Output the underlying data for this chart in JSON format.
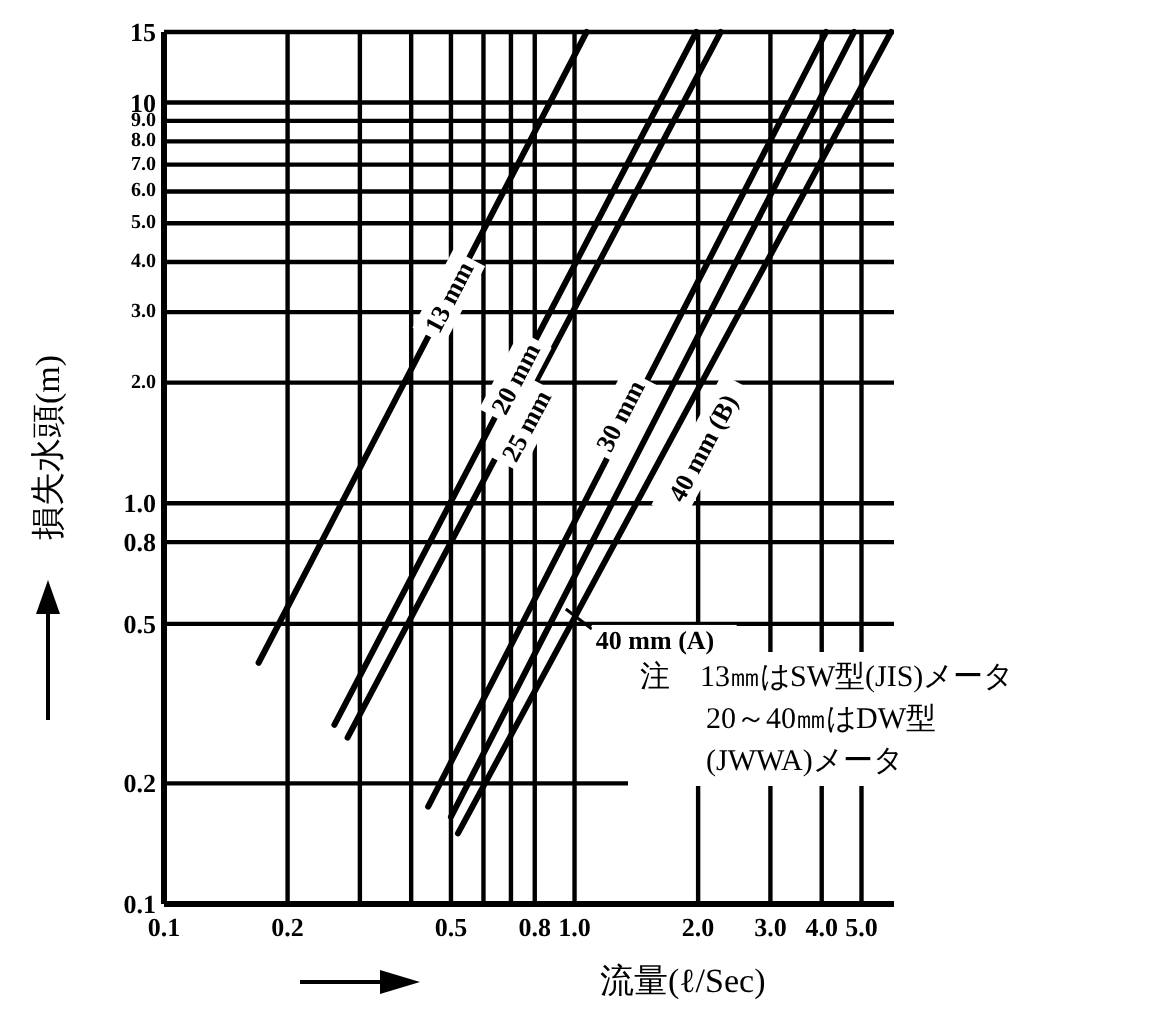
{
  "chart_data": {
    "type": "line",
    "xlabel": "流量(ℓ/Sec)",
    "ylabel": "損失水頭(m)",
    "log": "xy",
    "grid": true,
    "marker": "none",
    "line_style": "solid",
    "xlim": [
      0.1,
      6
    ],
    "ylim": [
      0.1,
      15
    ],
    "xticks": [
      0.1,
      0.2,
      {
        "value": 0.3,
        "label": null
      },
      {
        "value": 0.4,
        "label": null
      },
      0.5,
      {
        "value": 0.6,
        "label": null
      },
      {
        "value": 0.7,
        "label": null
      },
      0.8,
      {
        "value": 1,
        "label": "1.0"
      },
      {
        "value": 2,
        "label": "2.0"
      },
      {
        "value": 3,
        "label": "3.0"
      },
      {
        "value": 4,
        "label": "4.0"
      },
      {
        "value": 5,
        "label": "5.0"
      }
    ],
    "yticks": [
      0.1,
      0.2,
      0.5,
      0.8,
      {
        "value": 1,
        "label": "1.0"
      },
      {
        "value": 2,
        "label": "2.0"
      },
      {
        "value": 3,
        "label": "3.0"
      },
      {
        "value": 4,
        "label": "4.0"
      },
      {
        "value": 5,
        "label": "5.0"
      },
      {
        "value": 6,
        "label": "6.0"
      },
      {
        "value": 7,
        "label": "7.0"
      },
      {
        "value": 8,
        "label": "8.0"
      },
      {
        "value": 9,
        "label": "9.0"
      },
      10,
      15
    ],
    "series": [
      {
        "name": "13 mm",
        "color": "#000000",
        "x": [
          0.17,
          1.07
        ],
        "values": [
          0.4,
          15
        ]
      },
      {
        "name": "20 mm",
        "color": "#000000",
        "x": [
          0.26,
          1.98
        ],
        "values": [
          0.28,
          15
        ]
      },
      {
        "name": "25 mm",
        "color": "#000000",
        "x": [
          0.28,
          2.27
        ],
        "values": [
          0.26,
          15
        ]
      },
      {
        "name": "30 mm",
        "color": "#000000",
        "x": [
          0.44,
          4.1
        ],
        "values": [
          0.175,
          15
        ]
      },
      {
        "name": "40 mm (A)",
        "color": "#000000",
        "x": [
          0.5,
          4.8
        ],
        "values": [
          0.165,
          15
        ]
      },
      {
        "name": "40 mm (B)",
        "color": "#000000",
        "x": [
          0.52,
          5.9
        ],
        "values": [
          0.15,
          15
        ]
      }
    ],
    "annotations": [
      "注　13㎜はSW型(JIS)メータ",
      "20～40㎜はDW型",
      "(JWWA)メータ"
    ]
  }
}
